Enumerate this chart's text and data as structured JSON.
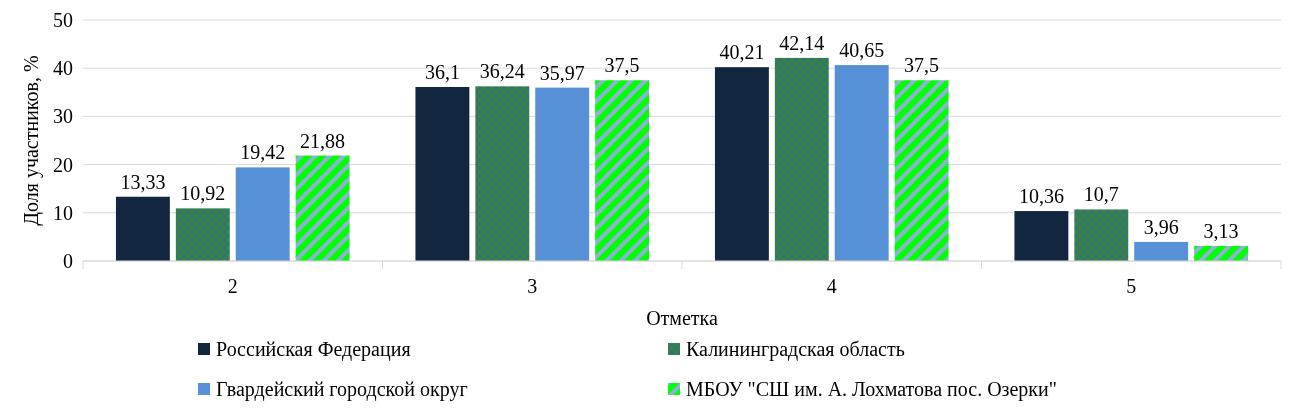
{
  "chart_data": {
    "type": "bar",
    "xlabel": "Отметка",
    "ylabel": "Доля участников, %",
    "categories": [
      "2",
      "3",
      "4",
      "5"
    ],
    "series": [
      {
        "name": "Российская Федерация",
        "color": "#12263f",
        "values": [
          13.33,
          36.1,
          40.21,
          10.36
        ],
        "value_labels": [
          "13,33",
          "36,1",
          "40,21",
          "10,36"
        ]
      },
      {
        "name": "Калининградская область",
        "color": "#2e8b3e",
        "values": [
          10.92,
          36.24,
          42.14,
          10.7
        ],
        "value_labels": [
          "10,92",
          "36,24",
          "42,14",
          "10,7"
        ]
      },
      {
        "name": "Гвардейский городской округ",
        "color": "#5690d6",
        "values": [
          19.42,
          35.97,
          40.65,
          3.96
        ],
        "value_labels": [
          "19,42",
          "35,97",
          "40,65",
          "3,96"
        ]
      },
      {
        "name": "МБОУ \"СШ им. А. Лохматова пос. Озерки\"",
        "color": "#00ff00",
        "values": [
          21.88,
          37.5,
          37.5,
          3.13
        ],
        "value_labels": [
          "21,88",
          "37,5",
          "37,5",
          "3,13"
        ]
      }
    ],
    "ylim": [
      0,
      50
    ],
    "yticks": [
      0,
      10,
      20,
      30,
      40,
      50
    ],
    "grid": "y",
    "legend": "bottom"
  }
}
